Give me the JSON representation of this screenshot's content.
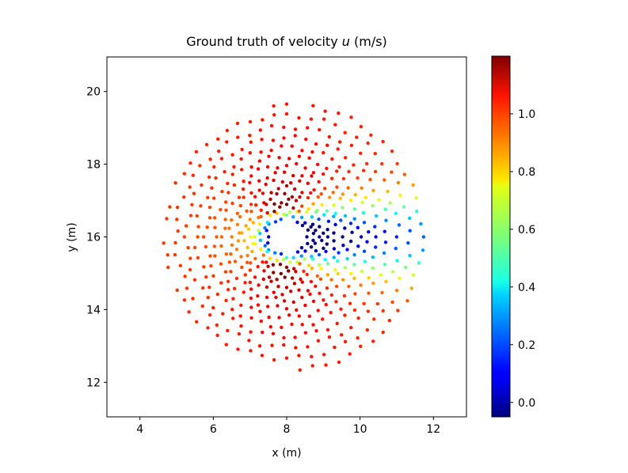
{
  "chart_data": {
    "type": "scatter",
    "title": "Ground truth of velocity u (m/s)",
    "title_prefix": "Ground truth of velocity ",
    "title_var": "u",
    "title_suffix": " (m/s)",
    "xlabel": "x (m)",
    "ylabel": "y (m)",
    "xlim": [
      3.1,
      12.9
    ],
    "ylim": [
      11.05,
      20.95
    ],
    "xticks": [
      4,
      6,
      8,
      10,
      12
    ],
    "yticks": [
      12,
      14,
      16,
      18,
      20
    ],
    "grid": false,
    "colormap": "jet",
    "colorbar": {
      "range": [
        -0.05,
        1.2
      ],
      "ticks": [
        "0.0",
        "0.2",
        "0.4",
        "0.6",
        "0.8",
        "1.0"
      ],
      "tick_values": [
        0.0,
        0.2,
        0.4,
        0.6,
        0.8,
        1.0
      ]
    },
    "field": {
      "cylinder_center": [
        8.0,
        16.0
      ],
      "cylinder_radius": 0.5,
      "domain_radius": 4.0,
      "freestream_u": 1.0,
      "value_range": [
        -0.05,
        1.2
      ]
    }
  }
}
